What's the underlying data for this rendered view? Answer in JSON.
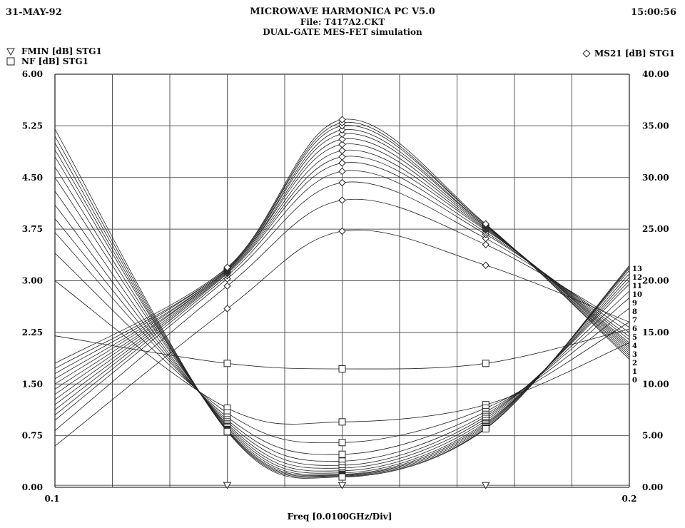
{
  "header": {
    "date": "31-MAY-92",
    "time": "15:00:56",
    "title": "MICROWAVE HARMONICA PC V5.0",
    "file": "File: T417A2.CKT",
    "subtitle": "DUAL-GATE MES-FET simulation"
  },
  "chart_data": {
    "type": "line",
    "title": "MICROWAVE HARMONICA PC V5.0",
    "xlabel": "Freq [0.0100GHz/Div]",
    "xlim": [
      0.1,
      0.2
    ],
    "x_tick_labels": [
      "0.1",
      "0.2"
    ],
    "left_axis": {
      "ylim": [
        0,
        6
      ],
      "tick_labels": [
        "0.00",
        "0.75",
        "1.50",
        "2.25",
        "3.00",
        "3.75",
        "4.50",
        "5.25",
        "6.00"
      ]
    },
    "right_axis": {
      "ylim": [
        0,
        40
      ],
      "tick_labels": [
        "0.00",
        "5.00",
        "10.00",
        "15.00",
        "20.00",
        "25.00",
        "30.00",
        "35.00",
        "40.00"
      ]
    },
    "grid": true,
    "legend": [
      {
        "symbol": "triangle",
        "label": "FMIN [dB] STG1",
        "position": "top-left"
      },
      {
        "symbol": "square",
        "label": "NF [dB] STG1",
        "position": "top-left"
      },
      {
        "symbol": "diamond",
        "label": "MS21 [dB] STG1",
        "position": "top-right"
      }
    ],
    "curve_labels": [
      "13",
      "12",
      "11",
      "10",
      "9",
      "8",
      "7",
      "6",
      "5",
      "4",
      "3",
      "2",
      "1",
      "0"
    ],
    "marker_x": [
      0.13,
      0.15,
      0.175
    ],
    "series": [
      {
        "name": "FMIN [dB] STG1",
        "axis": "left",
        "x": [
          0.1,
          0.13,
          0.15,
          0.175,
          0.2
        ],
        "y": [
          0.03,
          0.03,
          0.03,
          0.03,
          0.03
        ]
      },
      {
        "name": "NF [dB] STG1",
        "axis": "left",
        "family": true,
        "x": [
          0.1,
          0.13,
          0.15,
          0.175,
          0.2
        ],
        "curves": [
          [
            2.2,
            1.8,
            1.72,
            1.8,
            2.3
          ],
          [
            3.0,
            1.15,
            0.95,
            1.2,
            2.1
          ],
          [
            3.4,
            1.08,
            0.65,
            1.15,
            2.4
          ],
          [
            3.7,
            1.02,
            0.48,
            1.1,
            2.6
          ],
          [
            3.9,
            0.98,
            0.38,
            1.06,
            2.75
          ],
          [
            4.1,
            0.95,
            0.32,
            1.03,
            2.85
          ],
          [
            4.3,
            0.92,
            0.28,
            1.0,
            2.95
          ],
          [
            4.5,
            0.9,
            0.24,
            0.97,
            3.0
          ],
          [
            4.65,
            0.88,
            0.21,
            0.94,
            3.05
          ],
          [
            4.8,
            0.86,
            0.19,
            0.92,
            3.1
          ],
          [
            4.9,
            0.84,
            0.18,
            0.9,
            3.15
          ],
          [
            5.0,
            0.83,
            0.17,
            0.88,
            3.18
          ],
          [
            5.1,
            0.82,
            0.16,
            0.86,
            3.2
          ],
          [
            5.2,
            0.81,
            0.15,
            0.85,
            3.22
          ]
        ]
      },
      {
        "name": "MS21 [dB] STG1",
        "axis": "right",
        "family": true,
        "x": [
          0.1,
          0.13,
          0.15,
          0.175,
          0.2
        ],
        "curves": [
          [
            4.0,
            17.3,
            24.8,
            21.5,
            16.0
          ],
          [
            5.5,
            19.5,
            27.8,
            23.5,
            15.5
          ],
          [
            6.5,
            20.2,
            29.5,
            24.1,
            15.0
          ],
          [
            7.0,
            20.5,
            30.6,
            24.5,
            14.6
          ],
          [
            7.5,
            20.7,
            31.4,
            24.7,
            14.3
          ],
          [
            8.0,
            20.8,
            32.0,
            24.9,
            14.0
          ],
          [
            8.5,
            20.9,
            32.6,
            25.0,
            13.8
          ],
          [
            9.0,
            21.0,
            33.2,
            25.1,
            13.6
          ],
          [
            9.5,
            21.0,
            33.7,
            25.2,
            13.4
          ],
          [
            10.0,
            21.1,
            34.2,
            25.3,
            13.2
          ],
          [
            10.5,
            21.1,
            34.6,
            25.3,
            13.0
          ],
          [
            11.0,
            21.2,
            35.0,
            25.4,
            12.8
          ],
          [
            11.5,
            21.2,
            35.3,
            25.4,
            12.6
          ],
          [
            12.0,
            21.3,
            35.6,
            25.5,
            12.4
          ]
        ]
      }
    ]
  }
}
